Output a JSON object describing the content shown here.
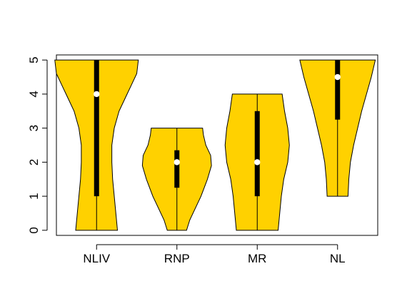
{
  "chart_data": {
    "type": "violin",
    "categories": [
      "NLIV",
      "RNP",
      "MR",
      "NL"
    ],
    "ylim": [
      -0.15,
      5.15
    ],
    "yticks": [
      0,
      1,
      2,
      3,
      4,
      5
    ],
    "fill_color": "#FFD100",
    "grid": false,
    "series": [
      {
        "category": "NLIV",
        "min": 0,
        "q1": 1,
        "median": 4,
        "q3": 5,
        "max": 5,
        "profile": [
          [
            0,
            0.26
          ],
          [
            0.5,
            0.24
          ],
          [
            1.0,
            0.22
          ],
          [
            1.5,
            0.2
          ],
          [
            2.0,
            0.19
          ],
          [
            2.5,
            0.19
          ],
          [
            3.0,
            0.22
          ],
          [
            3.5,
            0.28
          ],
          [
            4.0,
            0.38
          ],
          [
            4.3,
            0.44
          ],
          [
            4.6,
            0.5
          ],
          [
            5.0,
            0.52
          ]
        ]
      },
      {
        "category": "RNP",
        "min": 0,
        "q1": 1.25,
        "median": 2,
        "q3": 2.35,
        "max": 3,
        "profile": [
          [
            0,
            0.12
          ],
          [
            0.3,
            0.16
          ],
          [
            0.6,
            0.22
          ],
          [
            1.0,
            0.3
          ],
          [
            1.5,
            0.38
          ],
          [
            1.9,
            0.43
          ],
          [
            2.2,
            0.42
          ],
          [
            2.5,
            0.36
          ],
          [
            2.8,
            0.33
          ],
          [
            3.0,
            0.32
          ]
        ]
      },
      {
        "category": "MR",
        "min": 0,
        "q1": 1,
        "median": 2,
        "q3": 3.5,
        "max": 4,
        "profile": [
          [
            0,
            0.26
          ],
          [
            0.5,
            0.28
          ],
          [
            1.0,
            0.3
          ],
          [
            1.5,
            0.33
          ],
          [
            2.0,
            0.38
          ],
          [
            2.5,
            0.4
          ],
          [
            3.0,
            0.38
          ],
          [
            3.5,
            0.34
          ],
          [
            4.0,
            0.31
          ]
        ]
      },
      {
        "category": "NL",
        "min": 1,
        "q1": 3.25,
        "median": 4.5,
        "q3": 5,
        "max": 5,
        "profile": [
          [
            1.0,
            0.13
          ],
          [
            1.5,
            0.14
          ],
          [
            2.0,
            0.16
          ],
          [
            2.5,
            0.2
          ],
          [
            3.0,
            0.25
          ],
          [
            3.5,
            0.3
          ],
          [
            4.0,
            0.36
          ],
          [
            4.5,
            0.42
          ],
          [
            5.0,
            0.47
          ]
        ]
      }
    ]
  }
}
